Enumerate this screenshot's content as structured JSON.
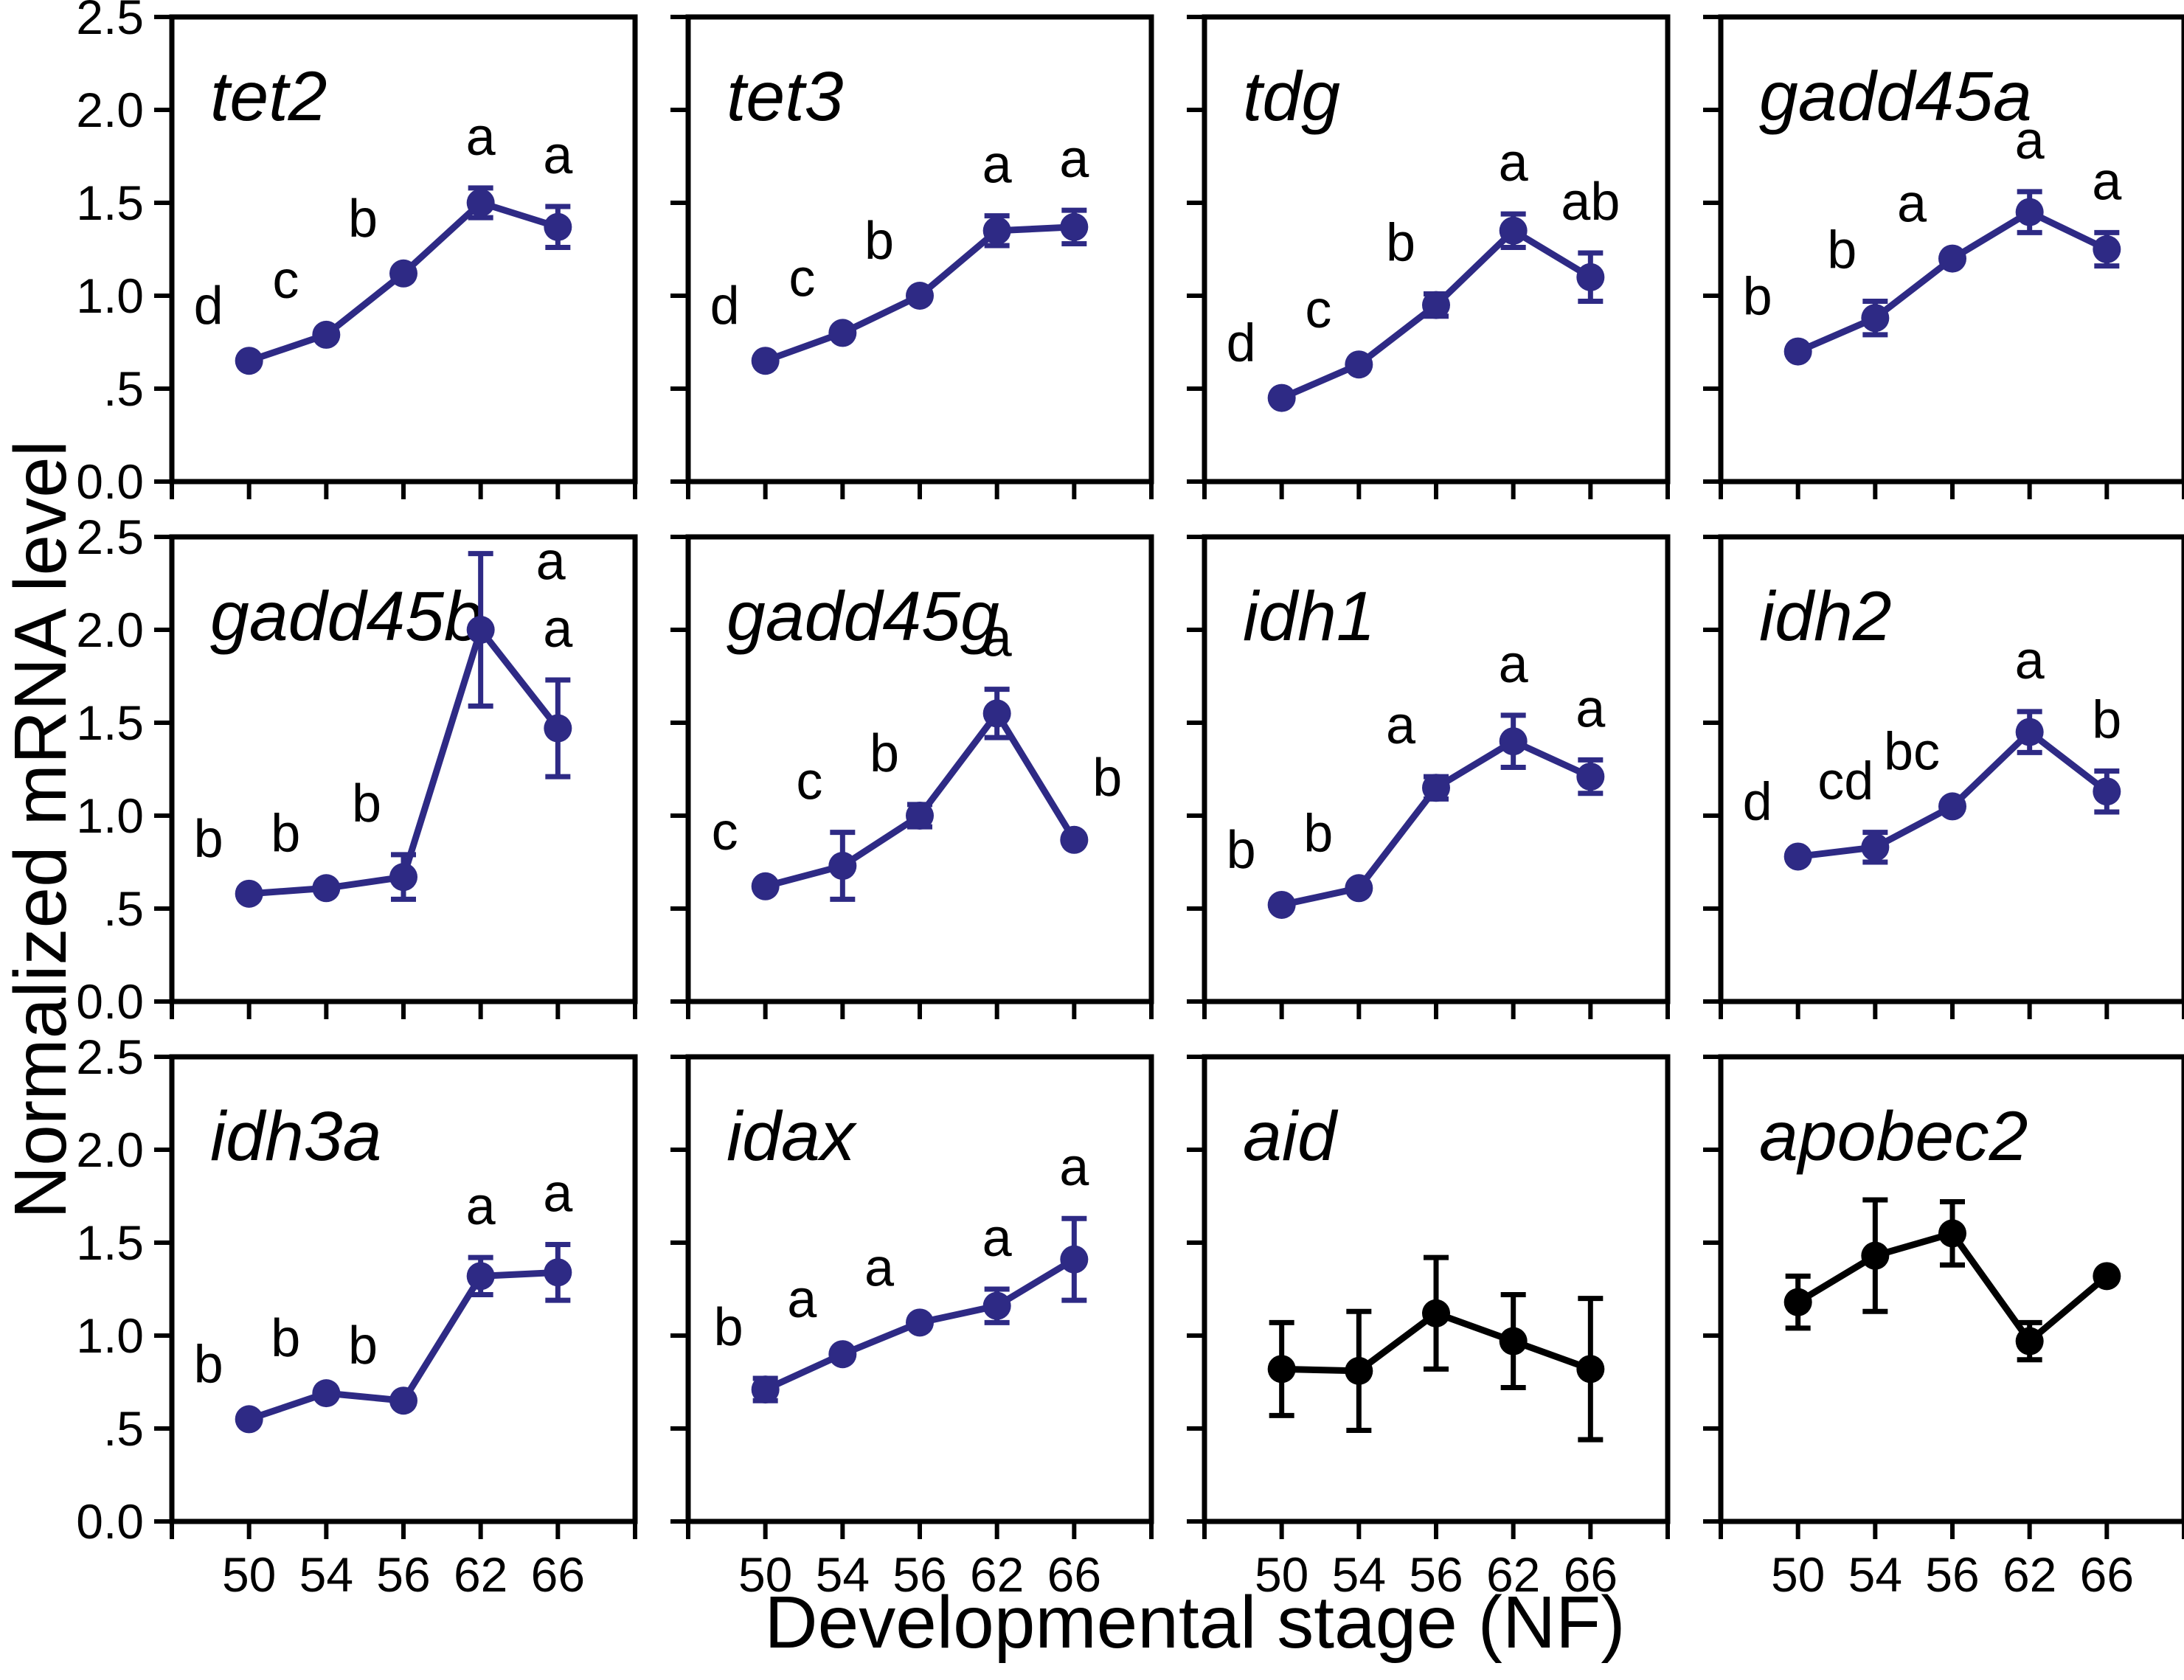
{
  "figure": {
    "ylabel": "Normalized mRNA level",
    "xlabel": "Developmental stage (NF)",
    "y_ticklabels": [
      "0.0",
      ".5",
      "1.0",
      "1.5",
      "2.0",
      "2.5"
    ],
    "x_ticklabels": [
      "50",
      "54",
      "56",
      "62",
      "66"
    ],
    "colors": {
      "navy": "#2e2a85",
      "black": "#000000"
    },
    "grid": {
      "rows": 3,
      "cols": 4,
      "ylim": [
        0,
        2.5
      ]
    }
  },
  "chart_data": [
    {
      "type": "line",
      "title": "tet2",
      "color": "#2e2a85",
      "x": [
        50,
        54,
        56,
        62,
        66
      ],
      "ylim": [
        0,
        2.5
      ],
      "values": [
        0.65,
        0.79,
        1.12,
        1.5,
        1.37
      ],
      "errors": [
        0,
        0,
        0,
        0.08,
        0.11
      ],
      "letters": [
        "d",
        "c",
        "b",
        "a",
        "a"
      ],
      "letter_offsets": {}
    },
    {
      "type": "line",
      "title": "tet3",
      "color": "#2e2a85",
      "x": [
        50,
        54,
        56,
        62,
        66
      ],
      "ylim": [
        0,
        2.5
      ],
      "values": [
        0.65,
        0.8,
        1.0,
        1.35,
        1.37
      ],
      "errors": [
        0,
        0,
        0,
        0.08,
        0.09
      ],
      "letters": [
        "d",
        "c",
        "b",
        "a",
        "a"
      ],
      "letter_offsets": {}
    },
    {
      "type": "line",
      "title": "tdg",
      "color": "#2e2a85",
      "x": [
        50,
        54,
        56,
        62,
        66
      ],
      "ylim": [
        0,
        2.5
      ],
      "values": [
        0.45,
        0.63,
        0.95,
        1.35,
        1.1
      ],
      "errors": [
        0,
        0,
        0.06,
        0.09,
        0.13
      ],
      "letters": [
        "d",
        "c",
        "b",
        "a",
        "ab"
      ],
      "letter_offsets": {
        "2": [
          -48,
          0
        ]
      }
    },
    {
      "type": "line",
      "title": "gadd45a",
      "color": "#2e2a85",
      "x": [
        50,
        54,
        56,
        62,
        66
      ],
      "ylim": [
        0,
        2.5
      ],
      "values": [
        0.7,
        0.88,
        1.2,
        1.45,
        1.25
      ],
      "errors": [
        0,
        0.09,
        0,
        0.11,
        0.09
      ],
      "letters": [
        "b",
        "b",
        "a",
        "a",
        "a"
      ],
      "letter_offsets": {
        "1": [
          -45,
          0
        ]
      }
    },
    {
      "type": "line",
      "title": "gadd45b",
      "color": "#2e2a85",
      "x": [
        50,
        54,
        56,
        62,
        66
      ],
      "ylim": [
        0,
        2.5
      ],
      "values": [
        0.58,
        0.61,
        0.67,
        2.0,
        1.47
      ],
      "errors": [
        0,
        0,
        0.12,
        0.41,
        0.26
      ],
      "letters": [
        "b",
        "b",
        "b",
        "a",
        "a"
      ],
      "letter_offsets": {
        "2": [
          -50,
          0
        ],
        "3": [
          95,
          80
        ]
      }
    },
    {
      "type": "line",
      "title": "gadd45g",
      "color": "#2e2a85",
      "x": [
        50,
        54,
        56,
        62,
        66
      ],
      "ylim": [
        0,
        2.5
      ],
      "values": [
        0.62,
        0.73,
        1.0,
        1.55,
        0.87
      ],
      "errors": [
        0,
        0.18,
        0.06,
        0.13,
        0
      ],
      "letters": [
        "c",
        "c",
        "b",
        "a",
        "b"
      ],
      "letter_offsets": {
        "1": [
          -45,
          0
        ],
        "2": [
          -48,
          0
        ],
        "4": [
          100,
          -10
        ]
      }
    },
    {
      "type": "line",
      "title": "idh1",
      "color": "#2e2a85",
      "x": [
        50,
        54,
        56,
        62,
        66
      ],
      "ylim": [
        0,
        2.5
      ],
      "values": [
        0.52,
        0.61,
        1.15,
        1.4,
        1.21
      ],
      "errors": [
        0,
        0,
        0.06,
        0.14,
        0.09
      ],
      "letters": [
        "b",
        "b",
        "a",
        "a",
        "a"
      ],
      "letter_offsets": {
        "2": [
          -48,
          0
        ]
      }
    },
    {
      "type": "line",
      "title": "idh2",
      "color": "#2e2a85",
      "x": [
        50,
        54,
        56,
        62,
        66
      ],
      "ylim": [
        0,
        2.5
      ],
      "values": [
        0.78,
        0.83,
        1.05,
        1.45,
        1.13
      ],
      "errors": [
        0,
        0.08,
        0,
        0.11,
        0.11
      ],
      "letters": [
        "d",
        "cd",
        "bc",
        "a",
        "b"
      ],
      "letter_offsets": {
        "1": [
          -40,
          0
        ]
      }
    },
    {
      "type": "line",
      "title": "idh3a",
      "color": "#2e2a85",
      "x": [
        50,
        54,
        56,
        62,
        66
      ],
      "ylim": [
        0,
        2.5
      ],
      "values": [
        0.55,
        0.69,
        0.65,
        1.32,
        1.34
      ],
      "errors": [
        0,
        0,
        0,
        0.1,
        0.15
      ],
      "letters": [
        "b",
        "b",
        "b",
        "a",
        "a"
      ],
      "letter_offsets": {}
    },
    {
      "type": "line",
      "title": "idax",
      "color": "#2e2a85",
      "x": [
        50,
        54,
        56,
        62,
        66
      ],
      "ylim": [
        0,
        2.5
      ],
      "values": [
        0.71,
        0.9,
        1.07,
        1.16,
        1.41
      ],
      "errors": [
        0.06,
        0,
        0,
        0.09,
        0.22
      ],
      "letters": [
        "b",
        "a",
        "a",
        "a",
        "a"
      ],
      "letter_offsets": {
        "0": [
          -50,
          0
        ]
      }
    },
    {
      "type": "line",
      "title": "aid",
      "color": "#000000",
      "x": [
        50,
        54,
        56,
        62,
        66
      ],
      "ylim": [
        0,
        2.5
      ],
      "values": [
        0.82,
        0.81,
        1.12,
        0.97,
        0.82
      ],
      "errors": [
        0.25,
        0.32,
        0.3,
        0.25,
        0.38
      ],
      "letters": [
        "",
        "",
        "",
        "",
        ""
      ],
      "letter_offsets": {}
    },
    {
      "type": "line",
      "title": "apobec2",
      "color": "#000000",
      "x": [
        50,
        54,
        56,
        62,
        66
      ],
      "ylim": [
        0,
        2.5
      ],
      "values": [
        1.18,
        1.43,
        1.55,
        0.97,
        1.32
      ],
      "errors": [
        0.14,
        0.3,
        0.17,
        0.1,
        0
      ],
      "letters": [
        "",
        "",
        "",
        "",
        ""
      ],
      "letter_offsets": {}
    }
  ]
}
